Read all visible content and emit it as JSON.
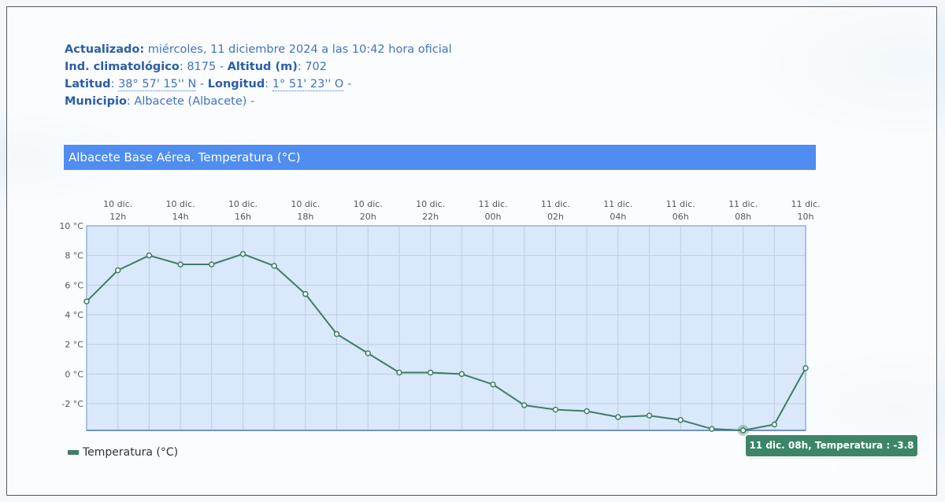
{
  "info": {
    "updated_label": "Actualizado:",
    "updated_value": "miércoles, 11 diciembre 2024 a las 10:42 hora oficial",
    "climate_label": "Ind. climatológico",
    "climate_value": ": 8175 - ",
    "altitude_label": "Altitud (m)",
    "altitude_value": ": 702",
    "lat_label": "Latitud",
    "lat_sep": ": ",
    "lat_value": "38° 57' 15'' N",
    "lon_sep1": " - ",
    "lon_label": "Longitud",
    "lon_sep2": ": ",
    "lon_value": "1° 51' 23'' O",
    "lon_trail": " -",
    "muni_label": "Municipio",
    "muni_value": ":   Albacete (Albacete) -"
  },
  "tooltip": "11 dic. 08h, Temperatura : -3.8 °C",
  "chart_data": {
    "type": "line",
    "title": "Albacete Base Aérea. Temperatura (°C)",
    "x_tick_labels": [
      [
        "10 dic.",
        "12h"
      ],
      [
        "10 dic.",
        "14h"
      ],
      [
        "10 dic.",
        "16h"
      ],
      [
        "10 dic.",
        "18h"
      ],
      [
        "10 dic.",
        "20h"
      ],
      [
        "10 dic.",
        "22h"
      ],
      [
        "11 dic.",
        "00h"
      ],
      [
        "11 dic.",
        "02h"
      ],
      [
        "11 dic.",
        "04h"
      ],
      [
        "11 dic.",
        "06h"
      ],
      [
        "11 dic.",
        "08h"
      ],
      [
        "11 dic.",
        "10h"
      ]
    ],
    "y_ticks": [
      "10 °C",
      "8 °C",
      "6 °C",
      "4 °C",
      "2 °C",
      "0 °C",
      "-2 °C"
    ],
    "y_tick_values": [
      10,
      8,
      6,
      4,
      2,
      0,
      -2
    ],
    "ylim": [
      -3.8,
      10
    ],
    "grid": true,
    "legend_position": "bottom-left",
    "series": [
      {
        "name": "Temperatura (°C)",
        "color": "#3d7d66",
        "x_hours": [
          "10 dic. 11h",
          "10 dic. 12h",
          "10 dic. 13h",
          "10 dic. 14h",
          "10 dic. 15h",
          "10 dic. 16h",
          "10 dic. 17h",
          "10 dic. 18h",
          "10 dic. 19h",
          "10 dic. 20h",
          "10 dic. 21h",
          "10 dic. 22h",
          "10 dic. 23h",
          "11 dic. 00h",
          "11 dic. 01h",
          "11 dic. 02h",
          "11 dic. 03h",
          "11 dic. 04h",
          "11 dic. 05h",
          "11 dic. 06h",
          "11 dic. 07h",
          "11 dic. 08h",
          "11 dic. 09h",
          "11 dic. 10h"
        ],
        "values": [
          4.9,
          7.0,
          8.0,
          7.4,
          7.4,
          8.1,
          7.3,
          5.4,
          2.7,
          1.4,
          0.1,
          0.1,
          0.0,
          -0.7,
          -2.1,
          -2.4,
          -2.5,
          -2.9,
          -2.8,
          -3.1,
          -3.7,
          -3.8,
          -3.4,
          0.4
        ]
      }
    ],
    "highlight_index": 21
  },
  "colors": {
    "plot_bg": "#dae8fb",
    "plot_border": "#8fb2de",
    "grid": "#bccde2",
    "line": "#3d7d66",
    "title_bar": "#4f8ef0",
    "tooltip": "#3d8568"
  }
}
